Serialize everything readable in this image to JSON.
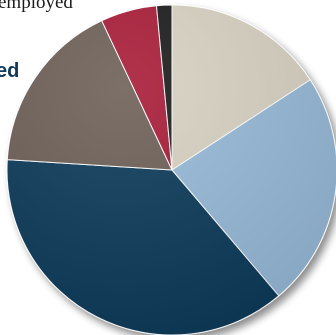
{
  "labels": {
    "employed_fragment": "employed",
    "ed_fragment": "ed"
  },
  "chart_data": {
    "type": "pie",
    "title": "",
    "slices": [
      {
        "value": 15.8,
        "color": "#d8d2c2"
      },
      {
        "value": 23.0,
        "color": "#97bad8"
      },
      {
        "value": 37.2,
        "color": "#0e3a5a"
      },
      {
        "value": 17.0,
        "color": "#6e6058"
      },
      {
        "value": 5.5,
        "color": "#a81a38"
      },
      {
        "value": 1.5,
        "color": "#1e1e1e"
      }
    ]
  }
}
